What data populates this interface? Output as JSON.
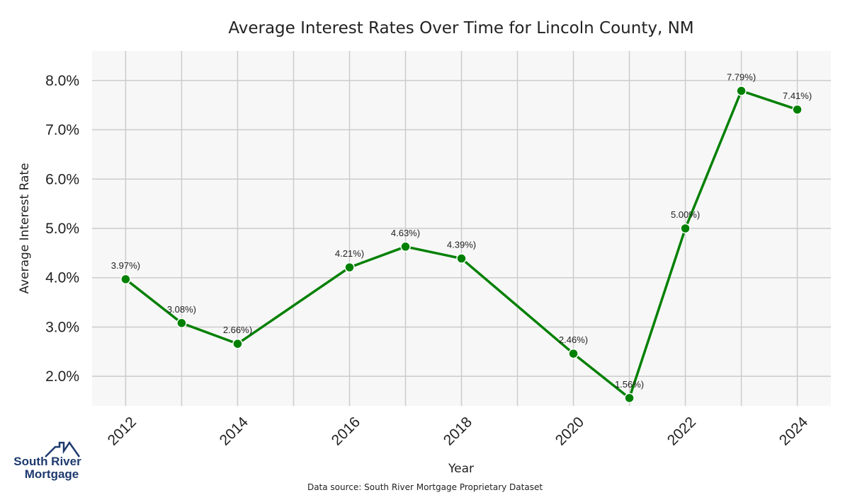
{
  "chart_data": {
    "type": "line",
    "title": "Average Interest Rates Over Time for Lincoln County, NM",
    "xlabel": "Year",
    "ylabel": "Average Interest Rate",
    "x": [
      2012,
      2013,
      2014,
      2016,
      2017,
      2018,
      2020,
      2021,
      2022,
      2023,
      2024
    ],
    "values": [
      3.97,
      3.08,
      2.66,
      4.21,
      4.63,
      4.39,
      2.46,
      1.56,
      5.0,
      7.79,
      7.41
    ],
    "data_labels": [
      "3.97%)",
      "3.08%)",
      "2.66%)",
      "4.21%)",
      "4.63%)",
      "4.39%)",
      "2.46%)",
      "1.56%)",
      "5.00%)",
      "7.79%)",
      "7.41%)"
    ],
    "xticks": [
      "2012",
      "2014",
      "2016",
      "2018",
      "2020",
      "2022",
      "2024"
    ],
    "yticks": [
      "2.0%",
      "3.0%",
      "4.0%",
      "5.0%",
      "6.0%",
      "7.0%",
      "8.0%"
    ],
    "xlim": [
      2011.4,
      2024.6
    ],
    "ylim": [
      1.4,
      8.6
    ],
    "grid": true,
    "line_color": "#008000",
    "plot_background": "#f7f7f7",
    "grid_color": "#cccccc"
  },
  "footer": {
    "source": "Data source: South River Mortgage Proprietary Dataset"
  },
  "logo": {
    "line1": "South River",
    "line2": "Mortgage",
    "color": "#1d3a6e"
  }
}
